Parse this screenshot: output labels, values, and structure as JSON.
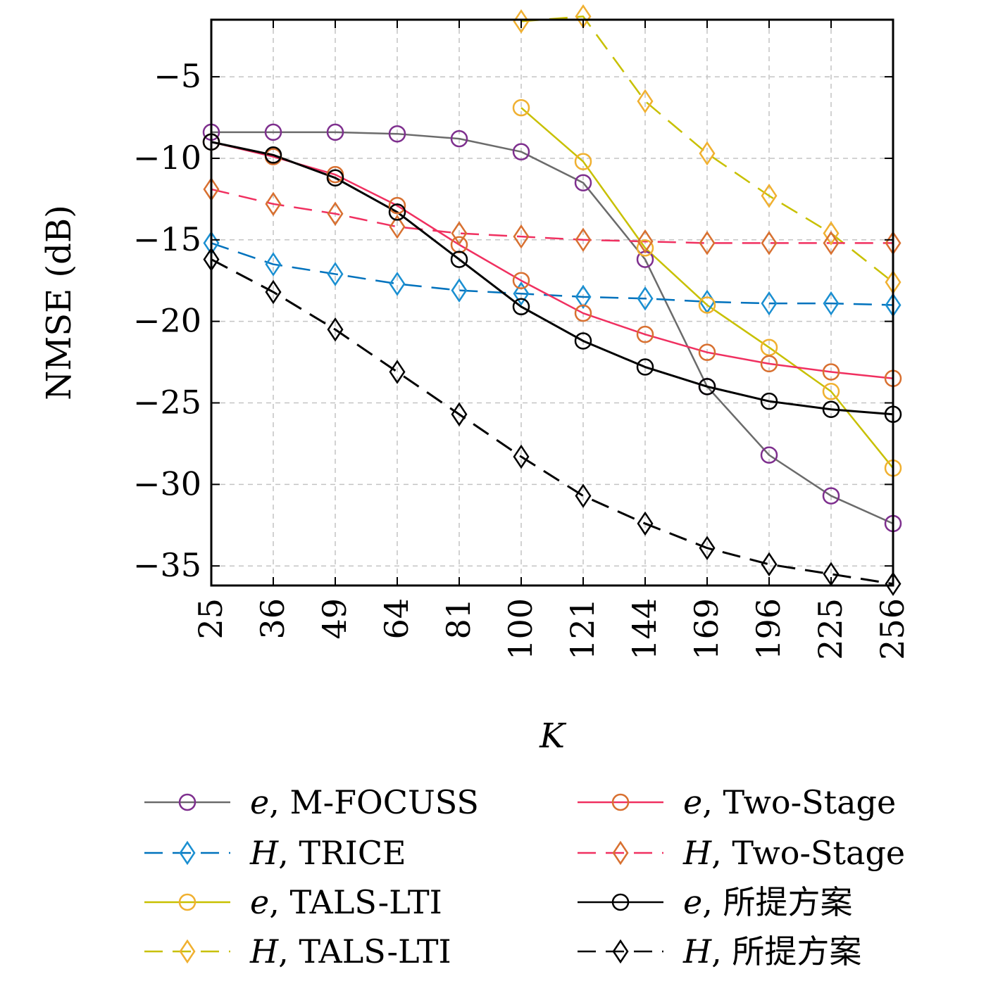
{
  "chart_data": {
    "type": "line",
    "title": "",
    "xlabel": "K",
    "ylabel": "NMSE (dB)",
    "xscale": "sqrt",
    "x": [
      25,
      36,
      49,
      64,
      81,
      100,
      121,
      144,
      169,
      196,
      225,
      256
    ],
    "x_tick_labels": [
      "25",
      "36",
      "49",
      "64",
      "81",
      "100",
      "121",
      "144",
      "169",
      "196",
      "225",
      "256"
    ],
    "xlim": [
      25,
      256
    ],
    "ylim": [
      -36.2,
      -1.5
    ],
    "y_ticks": [
      -35,
      -30,
      -25,
      -20,
      -15,
      -10,
      -5
    ],
    "y_tick_labels": [
      "−35",
      "−30",
      "−25",
      "−20",
      "−15",
      "−10",
      "−5"
    ],
    "grid": true,
    "legend_position": "bottom",
    "legend_columns": 2,
    "series": [
      {
        "var": "e",
        "name": "M-FOCUSS",
        "marker": "circle",
        "dash": "solid",
        "line_color": "#6b6b6b",
        "marker_color": "#7e2f8e",
        "values": [
          -8.4,
          -8.4,
          -8.4,
          -8.5,
          -8.8,
          -9.6,
          -11.5,
          -16.2,
          -24.0,
          -28.2,
          -30.7,
          -32.4
        ]
      },
      {
        "var": "H",
        "name": "TRICE",
        "marker": "diamond",
        "dash": "dashed",
        "line_color": "#0072bd",
        "marker_color": "#1a8fd1",
        "values": [
          -15.2,
          -16.5,
          -17.1,
          -17.7,
          -18.1,
          -18.3,
          -18.5,
          -18.6,
          -18.8,
          -18.9,
          -18.9,
          -19.0
        ]
      },
      {
        "var": "e",
        "name": "TALS-LTI",
        "marker": "circle",
        "dash": "solid",
        "line_color": "#c8c000",
        "marker_color": "#f0b030",
        "values": [
          null,
          null,
          null,
          null,
          null,
          -6.9,
          -10.2,
          -15.5,
          -19.0,
          -21.6,
          -24.3,
          -29.0
        ]
      },
      {
        "var": "H",
        "name": "TALS-LTI",
        "marker": "diamond",
        "dash": "dashed",
        "line_color": "#c8c000",
        "marker_color": "#f0b030",
        "values": [
          null,
          null,
          null,
          null,
          null,
          -1.6,
          -1.3,
          -6.5,
          -9.7,
          -12.3,
          -14.6,
          -17.6
        ]
      },
      {
        "var": "e",
        "name": "Two-Stage",
        "marker": "circle",
        "dash": "solid",
        "line_color": "#f03060",
        "marker_color": "#d87030",
        "values": [
          -9.0,
          -9.9,
          -11.0,
          -12.9,
          -15.3,
          -17.5,
          -19.5,
          -20.8,
          -21.9,
          -22.6,
          -23.1,
          -23.5
        ]
      },
      {
        "var": "H",
        "name": "Two-Stage",
        "marker": "diamond",
        "dash": "dashed",
        "line_color": "#f03060",
        "marker_color": "#d87030",
        "values": [
          -11.9,
          -12.8,
          -13.4,
          -14.2,
          -14.6,
          -14.8,
          -15.0,
          -15.1,
          -15.2,
          -15.2,
          -15.2,
          -15.2
        ]
      },
      {
        "var": "e",
        "name": "所提方案",
        "marker": "circle",
        "dash": "solid",
        "line_color": "#000000",
        "marker_color": "#000000",
        "values": [
          -9.0,
          -9.8,
          -11.2,
          -13.3,
          -16.2,
          -19.1,
          -21.2,
          -22.8,
          -24.0,
          -24.9,
          -25.4,
          -25.7
        ]
      },
      {
        "var": "H",
        "name": "所提方案",
        "marker": "diamond",
        "dash": "dashed",
        "line_color": "#000000",
        "marker_color": "#000000",
        "values": [
          -16.2,
          -18.2,
          -20.5,
          -23.1,
          -25.7,
          -28.3,
          -30.7,
          -32.4,
          -33.9,
          -34.9,
          -35.5,
          -36.1
        ]
      }
    ]
  }
}
